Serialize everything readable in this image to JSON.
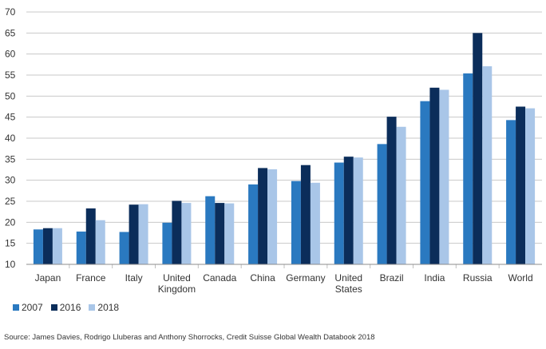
{
  "chart_data": {
    "type": "bar",
    "categories": [
      "Japan",
      "France",
      "Italy",
      "United Kingdom",
      "Canada",
      "China",
      "Germany",
      "United States",
      "Brazil",
      "India",
      "Russia",
      "World"
    ],
    "category_lines": [
      [
        "Japan"
      ],
      [
        "France"
      ],
      [
        "Italy"
      ],
      [
        "United",
        "Kingdom"
      ],
      [
        "Canada"
      ],
      [
        "China"
      ],
      [
        "Germany"
      ],
      [
        "United",
        "States"
      ],
      [
        "Brazil"
      ],
      [
        "India"
      ],
      [
        "Russia"
      ],
      [
        "World"
      ]
    ],
    "series": [
      {
        "name": "2007",
        "color": "#2a79c0",
        "values": [
          18.3,
          17.8,
          17.7,
          19.9,
          26.2,
          29.0,
          29.8,
          34.2,
          38.6,
          48.8,
          55.4,
          44.3
        ]
      },
      {
        "name": "2016",
        "color": "#0b2d5a",
        "values": [
          18.6,
          23.3,
          24.2,
          25.1,
          24.6,
          32.9,
          33.6,
          35.6,
          45.1,
          52.0,
          65.0,
          47.5
        ]
      },
      {
        "name": "2018",
        "color": "#a9c6e8",
        "values": [
          18.6,
          20.5,
          24.3,
          24.6,
          24.5,
          32.6,
          29.4,
          35.4,
          42.7,
          51.5,
          57.1,
          47.1
        ]
      }
    ],
    "ylim": [
      10,
      70
    ],
    "yticks": [
      10,
      15,
      20,
      25,
      30,
      35,
      40,
      45,
      50,
      55,
      60,
      65,
      70
    ],
    "grid": true,
    "legend_position": "bottom-left",
    "title": "",
    "xlabel": "",
    "ylabel": ""
  },
  "source": "Source: James Davies, Rodrigo Lluberas and Anthony Shorrocks, Credit Suisse Global Wealth Databook 2018"
}
